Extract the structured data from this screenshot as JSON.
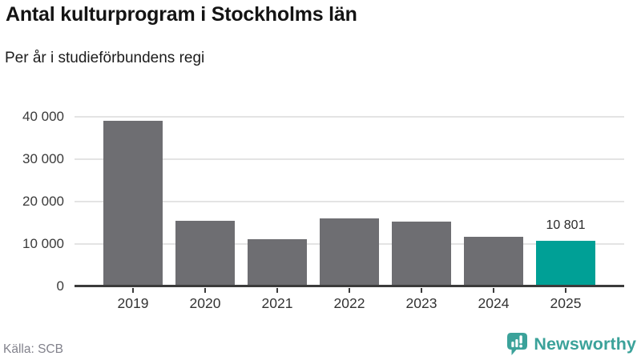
{
  "chart_data": {
    "type": "bar",
    "title": "Antal kulturprogram i Stockholms län",
    "subtitle": "Per år i studieförbundens regi",
    "categories": [
      "2019",
      "2020",
      "2021",
      "2022",
      "2023",
      "2024",
      "2025"
    ],
    "values": [
      39000,
      15500,
      11200,
      16100,
      15300,
      11700,
      10801
    ],
    "ylim": [
      0,
      40000
    ],
    "yticks": [
      0,
      10000,
      20000,
      30000,
      40000
    ],
    "ytick_labels": [
      "0",
      "10 000",
      "20 000",
      "30 000",
      "40 000"
    ],
    "grid": true,
    "legend": null,
    "bar_color": "#6E6E72",
    "highlight": {
      "index": 6,
      "color": "#00A096",
      "label": "10 801"
    }
  },
  "footer": {
    "source": "Källa: SCB",
    "brand": "Newsworthy",
    "brand_color": "#3BA29A"
  }
}
